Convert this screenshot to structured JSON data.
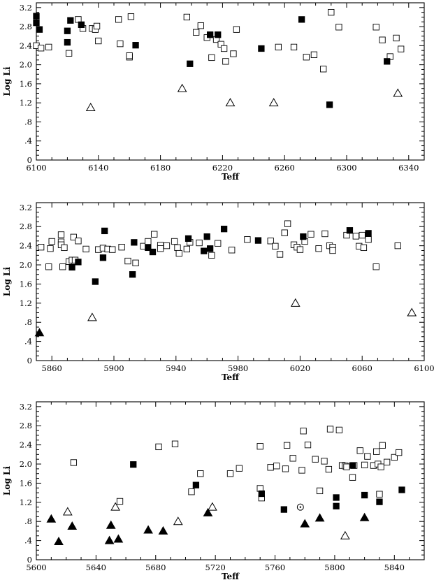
{
  "chart_data": [
    {
      "type": "scatter",
      "xlabel": "Teff",
      "ylabel": "Log Li",
      "xlim": [
        6100,
        6350
      ],
      "ylim": [
        0,
        3.3
      ],
      "xticks": [
        6100,
        6140,
        6180,
        6220,
        6260,
        6300,
        6340
      ],
      "yticks": [
        0,
        0.4,
        0.8,
        1.2,
        1.6,
        2.0,
        2.4,
        2.8,
        3.2
      ],
      "ytick_labels": [
        "0",
        ".4",
        ".8",
        "1.2",
        "1.6",
        "2.0",
        "2.4",
        "2.8",
        "3.2"
      ],
      "series": [
        {
          "marker": "open-square",
          "points": [
            [
              6100,
              2.4
            ],
            [
              6103,
              2.35
            ],
            [
              6108,
              2.37
            ],
            [
              6121,
              2.24
            ],
            [
              6127,
              2.95
            ],
            [
              6130,
              2.76
            ],
            [
              6136,
              2.76
            ],
            [
              6138,
              2.74
            ],
            [
              6139,
              2.81
            ],
            [
              6140,
              2.5
            ],
            [
              6153,
              2.95
            ],
            [
              6154,
              2.44
            ],
            [
              6160,
              2.16
            ],
            [
              6160,
              2.19
            ],
            [
              6161,
              3.01
            ],
            [
              6197,
              3.0
            ],
            [
              6203,
              2.68
            ],
            [
              6206,
              2.82
            ],
            [
              6210,
              2.57
            ],
            [
              6213,
              2.15
            ],
            [
              6216,
              2.53
            ],
            [
              6219,
              2.43
            ],
            [
              6221,
              2.34
            ],
            [
              6222,
              2.07
            ],
            [
              6227,
              2.23
            ],
            [
              6229,
              2.74
            ],
            [
              6256,
              2.37
            ],
            [
              6266,
              2.37
            ],
            [
              6274,
              2.16
            ],
            [
              6279,
              2.21
            ],
            [
              6285,
              1.91
            ],
            [
              6290,
              3.1
            ],
            [
              6295,
              2.79
            ],
            [
              6319,
              2.79
            ],
            [
              6323,
              2.52
            ],
            [
              6328,
              2.17
            ],
            [
              6332,
              2.56
            ],
            [
              6335,
              2.33
            ]
          ]
        },
        {
          "marker": "filled-square",
          "points": [
            [
              6100,
              3.02
            ],
            [
              6100,
              2.88
            ],
            [
              6102,
              2.74
            ],
            [
              6120,
              2.71
            ],
            [
              6120,
              2.47
            ],
            [
              6122,
              2.93
            ],
            [
              6129,
              2.84
            ],
            [
              6164,
              2.41
            ],
            [
              6199,
              2.02
            ],
            [
              6212,
              2.63
            ],
            [
              6217,
              2.63
            ],
            [
              6245,
              2.34
            ],
            [
              6271,
              2.95
            ],
            [
              6289,
              1.16
            ],
            [
              6326,
              2.07
            ]
          ]
        },
        {
          "marker": "open-triangle",
          "points": [
            [
              6135,
              1.1
            ],
            [
              6194,
              1.5
            ],
            [
              6225,
              1.2
            ],
            [
              6253,
              1.2
            ],
            [
              6333,
              1.4
            ]
          ]
        }
      ]
    },
    {
      "type": "scatter",
      "xlabel": "Teff",
      "ylabel": "Log Li",
      "xlim": [
        5850,
        6100
      ],
      "ylim": [
        0,
        3.3
      ],
      "xticks": [
        5860,
        5900,
        5940,
        5980,
        6020,
        6060,
        6100
      ],
      "yticks": [
        0,
        0.4,
        0.8,
        1.2,
        1.6,
        2.0,
        2.4,
        2.8,
        3.2
      ],
      "ytick_labels": [
        "0",
        ".4",
        ".8",
        "1.2",
        "1.6",
        "2.0",
        "2.4",
        "2.8",
        "3.2"
      ],
      "series": [
        {
          "marker": "open-square",
          "points": [
            [
              5853,
              2.37
            ],
            [
              5858,
              1.96
            ],
            [
              5859,
              2.34
            ],
            [
              5860,
              2.49
            ],
            [
              5866,
              2.63
            ],
            [
              5866,
              2.48
            ],
            [
              5866,
              2.42
            ],
            [
              5867,
              1.96
            ],
            [
              5868,
              2.36
            ],
            [
              5871,
              2.07
            ],
            [
              5873,
              2.1
            ],
            [
              5874,
              2.58
            ],
            [
              5875,
              2.1
            ],
            [
              5877,
              2.5
            ],
            [
              5882,
              2.33
            ],
            [
              5890,
              2.32
            ],
            [
              5893,
              2.35
            ],
            [
              5896,
              2.33
            ],
            [
              5899,
              2.32
            ],
            [
              5905,
              2.37
            ],
            [
              5909,
              2.08
            ],
            [
              5914,
              2.04
            ],
            [
              5919,
              2.39
            ],
            [
              5922,
              2.49
            ],
            [
              5926,
              2.64
            ],
            [
              5930,
              2.41
            ],
            [
              5930,
              2.34
            ],
            [
              5934,
              2.4
            ],
            [
              5939,
              2.49
            ],
            [
              5941,
              2.36
            ],
            [
              5942,
              2.24
            ],
            [
              5947,
              2.33
            ],
            [
              5949,
              2.47
            ],
            [
              5955,
              2.46
            ],
            [
              5963,
              2.2
            ],
            [
              5967,
              2.45
            ],
            [
              5976,
              2.31
            ],
            [
              5986,
              2.53
            ],
            [
              6001,
              2.5
            ],
            [
              6004,
              2.39
            ],
            [
              6007,
              2.22
            ],
            [
              6010,
              2.67
            ],
            [
              6012,
              2.86
            ],
            [
              6016,
              2.42
            ],
            [
              6018,
              2.37
            ],
            [
              6020,
              2.32
            ],
            [
              6023,
              2.49
            ],
            [
              6027,
              2.64
            ],
            [
              6032,
              2.34
            ],
            [
              6036,
              2.65
            ],
            [
              6039,
              2.4
            ],
            [
              6041,
              2.37
            ],
            [
              6041,
              2.3
            ],
            [
              6050,
              2.62
            ],
            [
              6056,
              2.6
            ],
            [
              6058,
              2.39
            ],
            [
              6060,
              2.62
            ],
            [
              6061,
              2.36
            ],
            [
              6064,
              2.53
            ],
            [
              6069,
              1.96
            ],
            [
              6083,
              2.4
            ]
          ]
        },
        {
          "marker": "filled-square",
          "points": [
            [
              5873,
              1.95
            ],
            [
              5877,
              2.06
            ],
            [
              5888,
              1.65
            ],
            [
              5894,
              2.71
            ],
            [
              5893,
              2.15
            ],
            [
              5913,
              2.47
            ],
            [
              5912,
              1.8
            ],
            [
              5922,
              2.36
            ],
            [
              5925,
              2.27
            ],
            [
              5948,
              2.55
            ],
            [
              5958,
              2.29
            ],
            [
              5960,
              2.59
            ],
            [
              5962,
              2.34
            ],
            [
              5971,
              2.75
            ],
            [
              5993,
              2.51
            ],
            [
              6022,
              2.59
            ],
            [
              6052,
              2.72
            ],
            [
              6064,
              2.66
            ]
          ]
        },
        {
          "marker": "open-triangle",
          "points": [
            [
              5886,
              0.9
            ],
            [
              6017,
              1.2
            ],
            [
              6092,
              1.0
            ]
          ]
        },
        {
          "marker": "filled-triangle",
          "points": [
            [
              5852,
              0.58
            ]
          ]
        }
      ]
    },
    {
      "type": "scatter",
      "xlabel": "Teff",
      "ylabel": "Log Li",
      "xlim": [
        5600,
        5860
      ],
      "ylim": [
        0,
        3.3
      ],
      "xticks": [
        5600,
        5640,
        5680,
        5720,
        5760,
        5800,
        5840
      ],
      "yticks": [
        0,
        0.4,
        0.8,
        1.2,
        1.6,
        2.0,
        2.4,
        2.8,
        3.2
      ],
      "ytick_labels": [
        "0",
        ".4",
        ".8",
        "1.2",
        "1.6",
        "2.0",
        "2.4",
        "2.8",
        "3.2"
      ],
      "series": [
        {
          "marker": "open-square",
          "points": [
            [
              5625,
              2.03
            ],
            [
              5656,
              1.22
            ],
            [
              5682,
              2.36
            ],
            [
              5693,
              2.42
            ],
            [
              5704,
              1.42
            ],
            [
              5710,
              1.8
            ],
            [
              5730,
              1.8
            ],
            [
              5736,
              1.91
            ],
            [
              5750,
              2.37
            ],
            [
              5750,
              1.49
            ],
            [
              5751,
              1.29
            ],
            [
              5757,
              1.93
            ],
            [
              5761,
              1.96
            ],
            [
              5767,
              1.9
            ],
            [
              5768,
              2.39
            ],
            [
              5772,
              2.12
            ],
            [
              5778,
              1.87
            ],
            [
              5779,
              2.69
            ],
            [
              5782,
              2.4
            ],
            [
              5787,
              2.1
            ],
            [
              5790,
              1.44
            ],
            [
              5793,
              2.06
            ],
            [
              5797,
              2.73
            ],
            [
              5796,
              1.89
            ],
            [
              5803,
              2.71
            ],
            [
              5805,
              1.97
            ],
            [
              5807,
              1.96
            ],
            [
              5808,
              1.94
            ],
            [
              5812,
              1.72
            ],
            [
              5813,
              1.97
            ],
            [
              5817,
              2.28
            ],
            [
              5820,
              1.98
            ],
            [
              5822,
              2.16
            ],
            [
              5826,
              1.97
            ],
            [
              5828,
              2.26
            ],
            [
              5829,
              2.0
            ],
            [
              5831,
              1.94
            ],
            [
              5830,
              1.37
            ],
            [
              5832,
              2.39
            ],
            [
              5835,
              2.04
            ],
            [
              5840,
              2.14
            ],
            [
              5843,
              2.24
            ]
          ]
        },
        {
          "marker": "filled-square",
          "points": [
            [
              5665,
              1.99
            ],
            [
              5707,
              1.56
            ],
            [
              5751,
              1.38
            ],
            [
              5766,
              1.05
            ],
            [
              5801,
              1.3
            ],
            [
              5801,
              1.12
            ],
            [
              5812,
              1.97
            ],
            [
              5820,
              1.35
            ],
            [
              5830,
              1.21
            ],
            [
              5845,
              1.46
            ]
          ]
        },
        {
          "marker": "open-triangle",
          "points": [
            [
              5621,
              1.0
            ],
            [
              5653,
              1.1
            ],
            [
              5695,
              0.8
            ],
            [
              5718,
              1.1
            ],
            [
              5807,
              0.5
            ]
          ]
        },
        {
          "marker": "filled-triangle",
          "points": [
            [
              5610,
              0.85
            ],
            [
              5615,
              0.38
            ],
            [
              5624,
              0.7
            ],
            [
              5649,
              0.4
            ],
            [
              5650,
              0.72
            ],
            [
              5655,
              0.43
            ],
            [
              5675,
              0.62
            ],
            [
              5685,
              0.6
            ],
            [
              5715,
              0.98
            ],
            [
              5780,
              0.75
            ],
            [
              5790,
              0.87
            ],
            [
              5820,
              0.88
            ]
          ]
        },
        {
          "marker": "circle-dot",
          "points": [
            [
              5777,
              1.1
            ]
          ]
        }
      ]
    }
  ]
}
